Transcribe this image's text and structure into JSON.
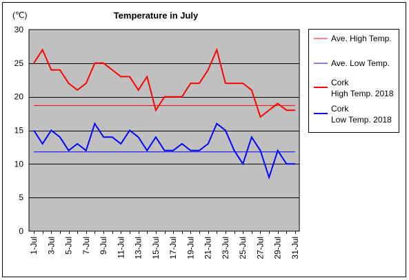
{
  "chart_data": {
    "type": "line",
    "title": "Temperature in July",
    "unit_label": "(℃)",
    "ylim": [
      0,
      30
    ],
    "yticks": [
      0,
      5,
      10,
      15,
      20,
      25,
      30
    ],
    "grid": "horizontal",
    "plot_background": "#c0c0c0",
    "legend_placement": "right",
    "x": [
      "1-Jul",
      "2-Jul",
      "3-Jul",
      "4-Jul",
      "5-Jul",
      "6-Jul",
      "7-Jul",
      "8-Jul",
      "9-Jul",
      "10-Jul",
      "11-Jul",
      "12-Jul",
      "13-Jul",
      "14-Jul",
      "15-Jul",
      "16-Jul",
      "17-Jul",
      "18-Jul",
      "19-Jul",
      "20-Jul",
      "21-Jul",
      "22-Jul",
      "23-Jul",
      "24-Jul",
      "25-Jul",
      "26-Jul",
      "27-Jul",
      "28-Jul",
      "29-Jul",
      "30-Jul",
      "31-Jul"
    ],
    "xtick_labels": [
      "1-Jul",
      "3-Jul",
      "5-Jul",
      "7-Jul",
      "9-Jul",
      "11-Jul",
      "13-Jul",
      "15-Jul",
      "17-Jul",
      "19-Jul",
      "21-Jul",
      "23-Jul",
      "25-Jul",
      "27-Jul",
      "29-Jul",
      "31-Jul"
    ],
    "series": [
      {
        "name": "Ave. High Temp.",
        "color": "#ff0000",
        "width": 1,
        "constant": 18.7
      },
      {
        "name": "Ave. Low Temp.",
        "color": "#0000ff",
        "width": 1,
        "constant": 11.8
      },
      {
        "name": "Cork\nHigh Temp. 2018",
        "color": "#ff0000",
        "width": 2,
        "values": [
          25,
          27,
          24,
          24,
          22,
          21,
          22,
          25,
          25,
          24,
          23,
          23,
          21,
          23,
          18,
          20,
          20,
          20,
          22,
          22,
          24,
          27,
          22,
          22,
          22,
          21,
          17,
          18,
          19,
          18,
          18
        ]
      },
      {
        "name": "Cork\nLow Temp. 2018",
        "color": "#0000ff",
        "width": 2,
        "values": [
          15,
          13,
          15,
          14,
          12,
          13,
          12,
          16,
          14,
          14,
          13,
          15,
          14,
          12,
          14,
          12,
          12,
          13,
          12,
          12,
          13,
          16,
          15,
          12,
          10,
          14,
          12,
          8,
          12,
          10,
          10
        ]
      }
    ]
  }
}
